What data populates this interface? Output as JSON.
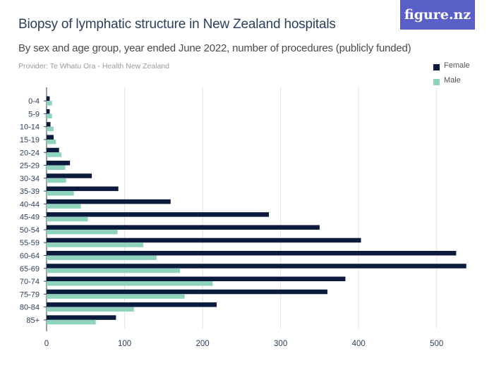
{
  "page": {
    "title": "Biopsy of lymphatic structure in New Zealand hospitals",
    "subtitle": "By sex and age group, year ended June 2022, number of procedures (publicly funded)",
    "provider": "Provider: Te Whatu Ora - Health New Zealand",
    "logo_text": "figure.nz"
  },
  "colors": {
    "female": "#0c1a3d",
    "male": "#8fd3bd",
    "grid": "#e3e3e3",
    "axis": "#2b3f5c",
    "logo_bg": "#5a5ec7"
  },
  "chart_data": {
    "type": "bar",
    "orientation": "horizontal",
    "title": "Biopsy of lymphatic structure in New Zealand hospitals",
    "subtitle": "By sex and age group, year ended June 2022, number of procedures (publicly funded)",
    "categories": [
      "0-4",
      "5-9",
      "10-14",
      "15-19",
      "20-24",
      "25-29",
      "30-34",
      "35-39",
      "40-44",
      "45-49",
      "50-54",
      "55-59",
      "60-64",
      "65-69",
      "70-74",
      "75-79",
      "80-84",
      "85+"
    ],
    "series": [
      {
        "name": "Female",
        "values": [
          4,
          4,
          5,
          9,
          16,
          30,
          58,
          92,
          159,
          285,
          350,
          403,
          525,
          538,
          383,
          360,
          218,
          89
        ]
      },
      {
        "name": "Male",
        "values": [
          7,
          7,
          9,
          12,
          19,
          24,
          25,
          35,
          44,
          53,
          91,
          124,
          141,
          171,
          213,
          177,
          112,
          63
        ]
      }
    ],
    "xlim": [
      0,
      550
    ],
    "xticks": [
      0,
      100,
      200,
      300,
      400,
      500
    ],
    "xlabel": "",
    "ylabel": "",
    "grid": "vertical",
    "legend": "top-right"
  }
}
